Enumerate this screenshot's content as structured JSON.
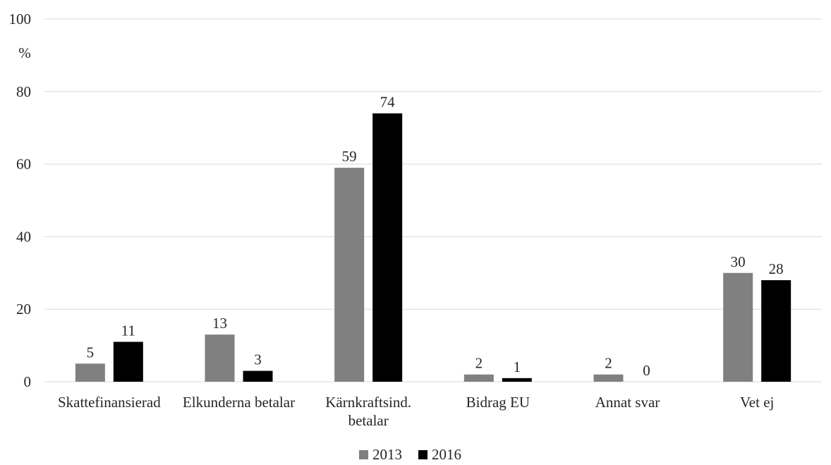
{
  "chart_data": {
    "type": "bar",
    "categories": [
      [
        "Skattefinansierad"
      ],
      [
        "Elkunderna betalar"
      ],
      [
        "Kärnkraftsind.",
        "betalar"
      ],
      [
        "Bidrag EU"
      ],
      [
        "Annat svar"
      ],
      [
        "Vet ej"
      ]
    ],
    "series": [
      {
        "name": "2013",
        "color": "#808080",
        "values": [
          5,
          13,
          59,
          2,
          2,
          30
        ]
      },
      {
        "name": "2016",
        "color": "#000000",
        "values": [
          11,
          3,
          74,
          1,
          0,
          28
        ]
      }
    ],
    "ylim": [
      0,
      100
    ],
    "yticks": [
      0,
      20,
      40,
      60,
      80,
      100
    ],
    "yunit": "%",
    "grid": true,
    "legend_position": "bottom"
  }
}
